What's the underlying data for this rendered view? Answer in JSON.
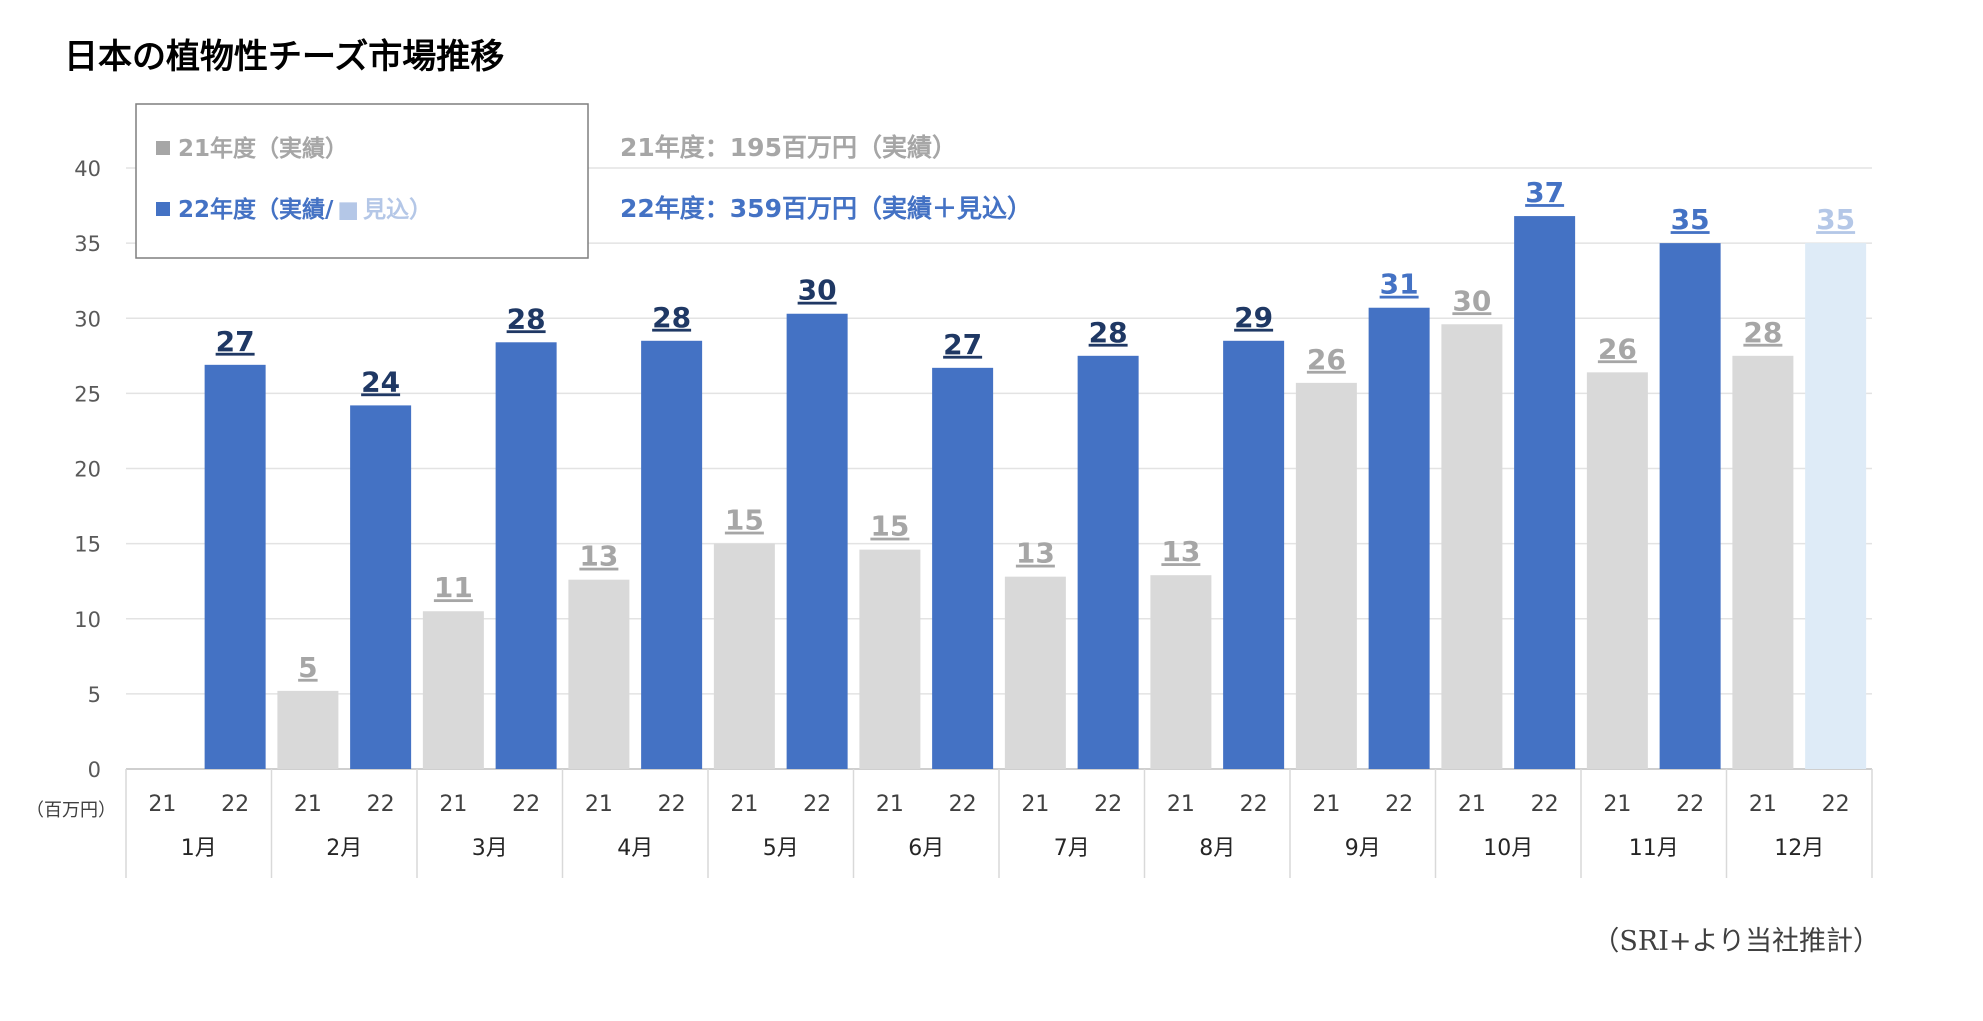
{
  "title": "日本の植物性チーズ市場推移",
  "unit_label": "（百万円）",
  "source_note": "（SRI+より当社推計）",
  "legend": {
    "fy21": "21年度（実績）",
    "fy22_prefix": "22年度（実績/",
    "fy22_forecast": "見込）"
  },
  "totals": {
    "fy21": "21年度：195百万円（実績）",
    "fy22": "22年度：359百万円（実績＋見込）"
  },
  "colors": {
    "fy21_bar": "#d9d9d9",
    "fy21_label": "#a6a6a6",
    "fy22_bar": "#4472c4",
    "fy22_label_dark": "#1f3864",
    "fy22_label_light": "#4472c4",
    "forecast_bar": "#deebf7",
    "forecast_label": "#b4c7e7"
  },
  "chart_data": {
    "type": "bar",
    "title": "日本の植物性チーズ市場推移",
    "ylabel": "（百万円）",
    "ylim": [
      0,
      40
    ],
    "yticks": [
      0,
      5,
      10,
      15,
      20,
      25,
      30,
      35,
      40
    ],
    "categories": [
      "1月",
      "2月",
      "3月",
      "4月",
      "5月",
      "6月",
      "7月",
      "8月",
      "9月",
      "10月",
      "11月",
      "12月"
    ],
    "sub_categories": [
      "21",
      "22"
    ],
    "grid": true,
    "legend_position": "top-left",
    "series": [
      {
        "name": "21年度（実績）",
        "values": [
          null,
          5.2,
          10.5,
          12.6,
          15.0,
          14.6,
          12.8,
          12.9,
          25.7,
          29.6,
          26.4,
          27.5
        ],
        "labels": [
          "",
          "5",
          "11",
          "13",
          "15",
          "15",
          "13",
          "13",
          "26",
          "30",
          "26",
          "28"
        ]
      },
      {
        "name": "22年度（実績/見込）",
        "values": [
          26.9,
          24.2,
          28.4,
          28.5,
          30.3,
          26.7,
          27.5,
          28.5,
          30.7,
          36.8,
          35.0,
          35.0
        ],
        "labels": [
          "27",
          "24",
          "28",
          "28",
          "30",
          "27",
          "28",
          "29",
          "31",
          "37",
          "35",
          "35"
        ],
        "forecast": [
          false,
          false,
          false,
          false,
          false,
          false,
          false,
          false,
          false,
          false,
          false,
          true
        ]
      }
    ]
  }
}
